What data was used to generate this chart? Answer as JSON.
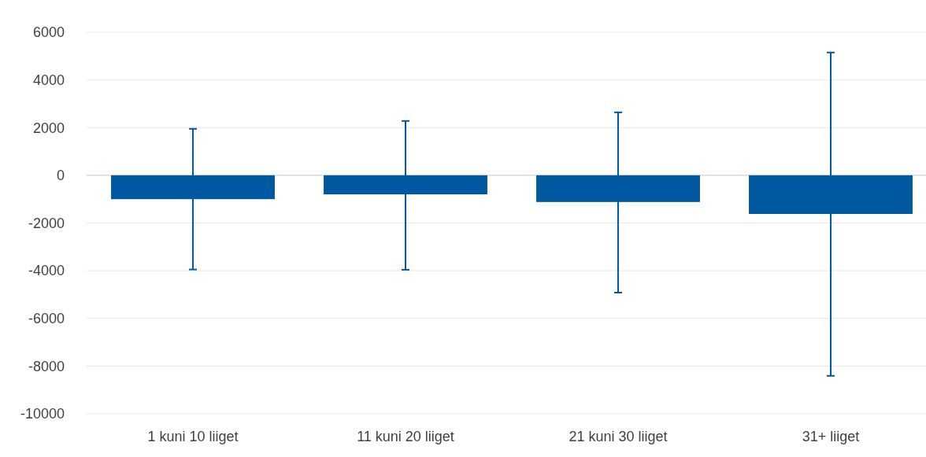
{
  "chart_data": {
    "type": "bar",
    "categories": [
      "1 kuni 10 liiget",
      "11 kuni 20 liiget",
      "21 kuni 30 liiget",
      "31+ liiget"
    ],
    "values": [
      -1000,
      -800,
      -1120,
      -1620
    ],
    "errors": [
      [
        -3950,
        1950
      ],
      [
        -3960,
        2280
      ],
      [
        -4920,
        2640
      ],
      [
        -8410,
        5150
      ]
    ],
    "color": "#0058a0",
    "ylim": [
      -10000,
      6000
    ],
    "yticks": [
      -10000,
      -8000,
      -6000,
      -4000,
      -2000,
      0,
      2000,
      4000,
      6000
    ],
    "grid": "y"
  }
}
